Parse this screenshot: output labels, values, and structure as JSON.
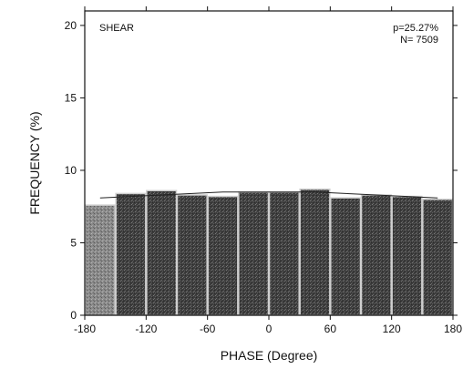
{
  "chart_data": {
    "type": "bar",
    "title": "",
    "xlabel": "PHASE (Degree)",
    "ylabel": "FREQUENCY (%)",
    "xlim": [
      -180,
      180
    ],
    "ylim": [
      0,
      21
    ],
    "xticks": [
      -180,
      -120,
      -60,
      0,
      60,
      120,
      180
    ],
    "yticks": [
      0,
      5,
      10,
      15,
      20
    ],
    "bin_width": 30,
    "bin_centers": [
      -165,
      -135,
      -105,
      -75,
      -45,
      -15,
      15,
      45,
      75,
      105,
      135,
      165
    ],
    "values": [
      7.6,
      8.4,
      8.6,
      8.3,
      8.2,
      8.5,
      8.5,
      8.7,
      8.1,
      8.3,
      8.2,
      8.0
    ],
    "fit_curve": {
      "x": [
        -165,
        -135,
        -105,
        -75,
        -45,
        -15,
        15,
        45,
        75,
        105,
        135,
        165
      ],
      "y": [
        8.1,
        8.2,
        8.3,
        8.4,
        8.5,
        8.5,
        8.5,
        8.5,
        8.4,
        8.3,
        8.2,
        8.1
      ]
    },
    "annotations": {
      "label": "SHEAR",
      "p": "p=25.27%",
      "n": "N= 7509"
    },
    "grid": false,
    "colors": {
      "bar_fill": "#4a4a4a",
      "bar_fill_light": "#8a8a8a",
      "bar_edge": "#cfcfcf",
      "axis": "#111111",
      "curve": "#222222"
    }
  }
}
